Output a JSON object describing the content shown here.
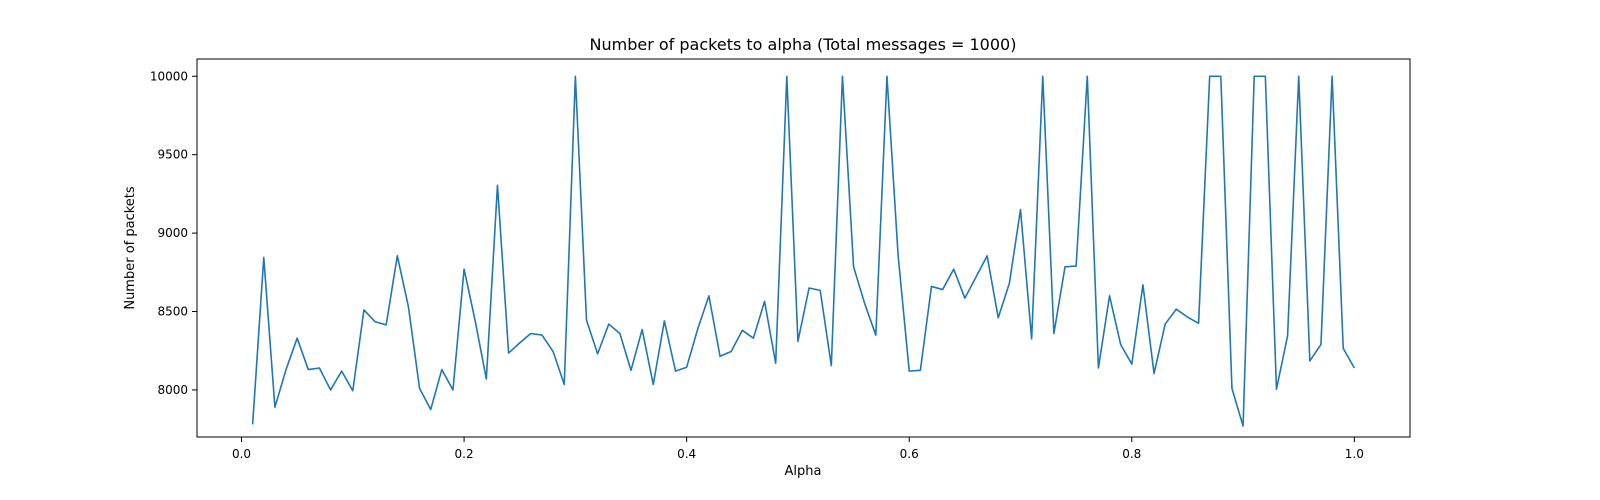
{
  "chart_data": {
    "type": "line",
    "title": "Number of packets to alpha (Total messages = 1000)",
    "xlabel": "Alpha",
    "ylabel": "Number of packets",
    "xlim": [
      -0.04,
      1.05
    ],
    "ylim": [
      7700,
      10110
    ],
    "xticks": [
      0.0,
      0.2,
      0.4,
      0.6,
      0.8,
      1.0
    ],
    "xtick_labels": [
      "0.0",
      "0.2",
      "0.4",
      "0.6",
      "0.8",
      "1.0"
    ],
    "yticks": [
      8000,
      8500,
      9000,
      9500,
      10000
    ],
    "ytick_labels": [
      "8000",
      "8500",
      "9000",
      "9500",
      "10000"
    ],
    "grid": false,
    "legend": "none",
    "series": [
      {
        "color": "#1f77b4",
        "x": [
          0.01,
          0.02,
          0.03,
          0.04,
          0.05,
          0.06,
          0.07,
          0.08,
          0.09,
          0.1,
          0.11,
          0.12,
          0.13,
          0.14,
          0.15,
          0.16,
          0.17,
          0.18,
          0.19,
          0.2,
          0.21,
          0.22,
          0.23,
          0.24,
          0.25,
          0.26,
          0.27,
          0.28,
          0.29,
          0.3,
          0.31,
          0.32,
          0.33,
          0.34,
          0.35,
          0.36,
          0.37,
          0.38,
          0.39,
          0.4,
          0.41,
          0.42,
          0.43,
          0.44,
          0.45,
          0.46,
          0.47,
          0.48,
          0.49,
          0.5,
          0.51,
          0.52,
          0.53,
          0.54,
          0.55,
          0.56,
          0.57,
          0.58,
          0.59,
          0.6,
          0.61,
          0.62,
          0.63,
          0.64,
          0.65,
          0.66,
          0.67,
          0.68,
          0.69,
          0.7,
          0.71,
          0.72,
          0.73,
          0.74,
          0.75,
          0.76,
          0.77,
          0.78,
          0.79,
          0.8,
          0.81,
          0.82,
          0.83,
          0.84,
          0.85,
          0.86,
          0.87,
          0.88,
          0.89,
          0.9,
          0.91,
          0.92,
          0.93,
          0.94,
          0.95,
          0.96,
          0.97,
          0.98,
          0.99,
          1.0
        ],
        "y": [
          7780,
          8845,
          7890,
          8130,
          8330,
          8130,
          8140,
          8000,
          8120,
          7995,
          8510,
          8435,
          8415,
          8855,
          8530,
          8010,
          7875,
          8130,
          8000,
          8770,
          8440,
          8070,
          9305,
          8235,
          8300,
          8360,
          8350,
          8245,
          8035,
          10000,
          8445,
          8230,
          8420,
          8360,
          8125,
          8385,
          8035,
          8440,
          8120,
          8145,
          8390,
          8600,
          8215,
          8245,
          8380,
          8330,
          8565,
          8170,
          10000,
          8310,
          8650,
          8635,
          8155,
          10000,
          8785,
          8550,
          8350,
          10000,
          8860,
          8120,
          8125,
          8660,
          8640,
          8770,
          8585,
          8720,
          8855,
          8460,
          8680,
          9150,
          8325,
          10000,
          8360,
          8785,
          8790,
          10000,
          8140,
          8600,
          8290,
          8165,
          8670,
          8105,
          8420,
          8515,
          8465,
          8425,
          10000,
          10000,
          8010,
          7770,
          10000,
          10000,
          8005,
          8345,
          10000,
          8185,
          8290,
          10000,
          8265,
          8140
        ]
      }
    ]
  }
}
